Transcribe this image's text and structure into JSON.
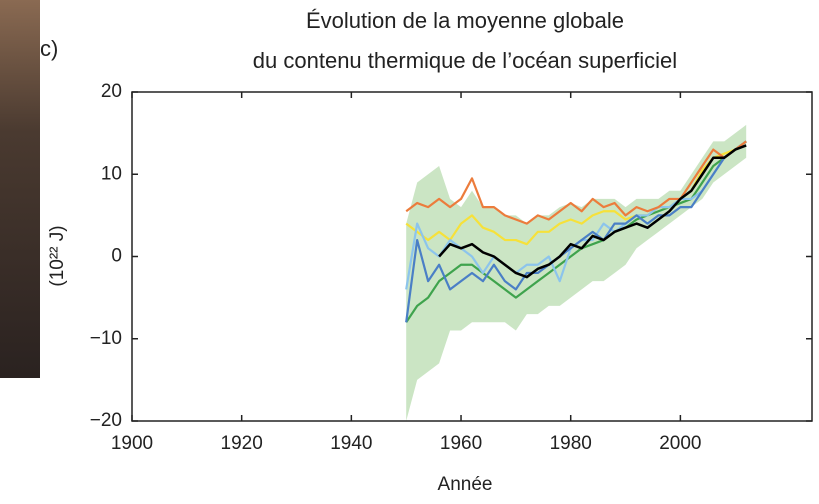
{
  "chart_data": {
    "type": "line",
    "panel_label": "c)",
    "title": [
      "Évolution de la moyenne globale",
      "du contenu thermique de l’océan superficiel"
    ],
    "xlabel": "Année",
    "ylabel": "(10²² J)",
    "xlim": [
      1900,
      2024
    ],
    "xticks": [
      1900,
      1920,
      1940,
      1960,
      1980,
      2000
    ],
    "ylim": [
      -20,
      20
    ],
    "yticks": [
      {
        "value": -20,
        "label": "−20"
      },
      {
        "value": -10,
        "label": "−10"
      },
      0,
      10,
      20
    ],
    "x": [
      1950,
      1952,
      1954,
      1956,
      1958,
      1960,
      1962,
      1964,
      1966,
      1968,
      1970,
      1972,
      1974,
      1976,
      1978,
      1980,
      1982,
      1984,
      1986,
      1988,
      1990,
      1992,
      1994,
      1996,
      1998,
      2000,
      2002,
      2004,
      2006,
      2008,
      2010,
      2012
    ],
    "band": {
      "color": "#b9dcb0",
      "lower": [
        -20,
        -15,
        -14,
        -13,
        -9,
        -9,
        -8,
        -8,
        -8,
        -8,
        -9,
        -7,
        -7,
        -6,
        -6,
        -5,
        -4,
        -3,
        -3,
        -2,
        -1,
        1,
        2,
        3,
        4,
        5,
        6,
        7,
        9,
        10,
        11,
        12
      ],
      "upper": [
        4,
        9,
        10,
        11,
        7,
        6,
        8,
        6,
        6,
        5,
        5,
        4,
        5,
        5,
        6,
        6.5,
        6,
        7,
        7,
        7,
        6,
        7,
        7,
        7,
        8,
        8,
        10,
        12,
        14,
        14,
        15,
        16
      ]
    },
    "series": [
      {
        "color": "#3fa34d",
        "values": [
          -8,
          -6,
          -5,
          -3,
          -2,
          -1,
          -1,
          -2,
          -3,
          -4,
          -5,
          -4,
          -3,
          -2,
          -1,
          0,
          1,
          1.5,
          2,
          3,
          3.5,
          4.5,
          5,
          5.5,
          6,
          6.5,
          7,
          9,
          11,
          12,
          13,
          14
        ]
      },
      {
        "color": "#f6e13a",
        "values": [
          4,
          3,
          2,
          3,
          2,
          4,
          5,
          3.5,
          3,
          2,
          2,
          1.5,
          3,
          3,
          4,
          4.5,
          4,
          5,
          5.5,
          5.5,
          4.5,
          5,
          5,
          6,
          6,
          7,
          8,
          10.5,
          12,
          12.5,
          13,
          14
        ]
      },
      {
        "color": "#8cc4ec",
        "values": [
          -4,
          4,
          1,
          0,
          2,
          1,
          0,
          -2,
          0,
          -1,
          -2,
          -1,
          -1,
          0,
          -3,
          1,
          2,
          2,
          4,
          3,
          4,
          5,
          5,
          6,
          6,
          7,
          7,
          8,
          10,
          12,
          13,
          14
        ]
      },
      {
        "color": "#4a7fc6",
        "values": [
          -8,
          2,
          -3,
          -1,
          -4,
          -3,
          -2,
          -3,
          -1,
          -3,
          -4,
          -2,
          -2,
          -1,
          0,
          1,
          2,
          3,
          2,
          4,
          4,
          5,
          4,
          5,
          5,
          6,
          6,
          8,
          10,
          12,
          13,
          14
        ]
      },
      {
        "color": "#ec7c3c",
        "values": [
          5.5,
          6.5,
          6,
          7,
          6,
          7,
          9.5,
          6,
          6,
          5,
          4.5,
          4,
          5,
          4.5,
          5.5,
          6.5,
          5.5,
          7,
          6,
          6.5,
          5,
          6,
          5.5,
          6,
          7,
          7,
          9,
          11,
          13,
          12,
          13,
          14
        ]
      },
      {
        "color": "#000000",
        "values": [
          null,
          null,
          null,
          0,
          1.5,
          1,
          1.5,
          0.5,
          0,
          -1,
          -2,
          -2.5,
          -1.5,
          -1,
          0,
          1.5,
          1,
          2.5,
          2,
          3,
          3.5,
          4,
          3.5,
          4.5,
          5.5,
          7,
          8,
          10,
          12,
          12,
          13,
          13.5
        ]
      }
    ]
  }
}
